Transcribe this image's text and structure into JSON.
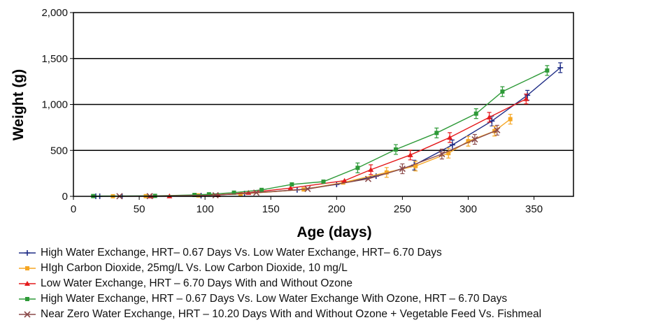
{
  "chart_data": {
    "type": "line",
    "xlabel": "Age (days)",
    "ylabel": "Weight (g)",
    "xlim": [
      0,
      380
    ],
    "ylim": [
      0,
      2000
    ],
    "x_ticks": [
      "0",
      "50",
      "100",
      "150",
      "200",
      "250",
      "300",
      "350"
    ],
    "y_ticks": [
      "0",
      "500",
      "1,000",
      "1,500",
      "2,000"
    ],
    "grid": "horizontal",
    "legend_position": "bottom",
    "series": [
      {
        "name": "High Water Exchange, HRT– 0.67 Days Vs. Low Water Exchange, HRT– 6.70 Days",
        "color": "#1f2d86",
        "marker": "plus",
        "points": [
          [
            17,
            1
          ],
          [
            20,
            1
          ],
          [
            37,
            2
          ],
          [
            97,
            8
          ],
          [
            130,
            30
          ],
          [
            170,
            70
          ],
          [
            200,
            130
          ],
          [
            230,
            220
          ],
          [
            259,
            340
          ],
          [
            288,
            560
          ],
          [
            318,
            820
          ],
          [
            345,
            1100
          ],
          [
            370,
            1400
          ]
        ]
      },
      {
        "name": "HIgh Carbon Dioxide, 25mg/L Vs. Low Carbon Dioxide, 10 mg/L",
        "color": "#f5a623",
        "marker": "square",
        "points": [
          [
            30,
            1
          ],
          [
            55,
            2
          ],
          [
            95,
            10
          ],
          [
            127,
            25
          ],
          [
            175,
            75
          ],
          [
            205,
            150
          ],
          [
            238,
            260
          ],
          [
            260,
            330
          ],
          [
            285,
            470
          ],
          [
            300,
            600
          ],
          [
            320,
            710
          ],
          [
            332,
            840
          ]
        ]
      },
      {
        "name": "Low Water Exchange, HRT – 6.70 Days With and Without Ozone",
        "color": "#e41a1c",
        "marker": "triangle",
        "points": [
          [
            59,
            2
          ],
          [
            73,
            2
          ],
          [
            110,
            15
          ],
          [
            133,
            40
          ],
          [
            165,
            90
          ],
          [
            206,
            170
          ],
          [
            226,
            290
          ],
          [
            256,
            450
          ],
          [
            286,
            640
          ],
          [
            316,
            860
          ],
          [
            344,
            1060
          ]
        ]
      },
      {
        "name": "High Water Exchange, HRT – 0.67 Days Vs. Low Water Exchange With Ozone, HRT – 6.70 Days",
        "color": "#2e9a38",
        "marker": "square",
        "points": [
          [
            15,
            3
          ],
          [
            62,
            5
          ],
          [
            92,
            15
          ],
          [
            103,
            22
          ],
          [
            122,
            40
          ],
          [
            143,
            70
          ],
          [
            166,
            130
          ],
          [
            190,
            160
          ],
          [
            216,
            310
          ],
          [
            245,
            510
          ],
          [
            276,
            690
          ],
          [
            306,
            900
          ],
          [
            326,
            1140
          ],
          [
            360,
            1370
          ]
        ]
      },
      {
        "name": "Near Zero Water Exchange, HRT – 10.20 Days With and Without Ozone + Vegetable Feed Vs. Fishmeal",
        "color": "#8b4a4a",
        "marker": "cross",
        "points": [
          [
            35,
            1
          ],
          [
            58,
            2
          ],
          [
            108,
            12
          ],
          [
            139,
            40
          ],
          [
            178,
            80
          ],
          [
            224,
            190
          ],
          [
            250,
            300
          ],
          [
            280,
            460
          ],
          [
            305,
            620
          ],
          [
            322,
            720
          ]
        ]
      }
    ]
  }
}
